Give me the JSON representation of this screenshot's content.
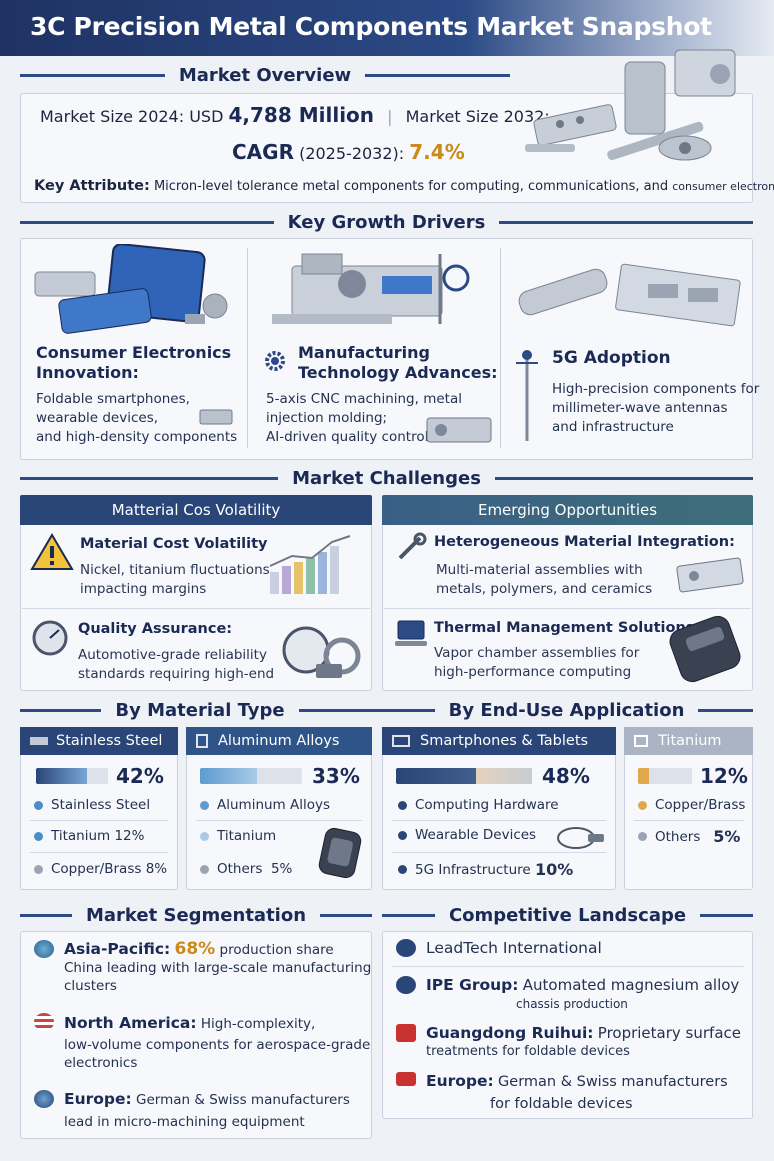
{
  "title": "3C Precision Metal Components Market Snapshot",
  "overview": {
    "heading": "Market Overview",
    "size_2024_label": "Market Size 2024: USD",
    "size_2024_value": "4,788 Million",
    "size_2032_label": "Market Size 2032:",
    "cagr_label": "CAGR",
    "cagr_period": "(2025-2032):",
    "cagr_value": "7.4%",
    "key_attr_label": "Key Attribute:",
    "key_attr_text": "Micron-level tolerance metal components for computing, communications, and",
    "key_attr_tail": "consumer electronics"
  },
  "drivers": {
    "heading": "Key Growth Drivers",
    "items": [
      {
        "title": "Consumer Electronics Innovation:",
        "text": [
          "Foldable smartphones,",
          "wearable devices,",
          "and high-density components"
        ]
      },
      {
        "title": "Manufacturing Technology Advances:",
        "text": [
          "5-axis CNC machining, metal",
          "injection molding;",
          "AI-driven quality control"
        ]
      },
      {
        "title": "5G Adoption",
        "text": [
          "High-precision components for",
          "millimeter-wave antennas",
          "and infrastructure"
        ]
      }
    ]
  },
  "challenges": {
    "heading": "Market Challenges",
    "left_head": "Matterial Cos Volatility",
    "right_head": "Emerging Opportunities",
    "left_items": [
      {
        "title": "Material Cost Volatility",
        "text": [
          "Nickel, titanium fluctuations",
          "impacting margins"
        ]
      },
      {
        "title": "Quality Assurance:",
        "text": [
          "Automotive-grade reliability",
          "standards requiring high-end"
        ]
      }
    ],
    "right_items": [
      {
        "title": "Heterogeneous Material Integration:",
        "text": [
          "Multi-material assemblies with",
          "metals, polymers, and ceramics"
        ]
      },
      {
        "title": "Thermal Management Solutions:",
        "text": [
          "Vapor chamber assemblies for",
          "high-performance computing"
        ]
      }
    ]
  },
  "material_heading": "By Material Type",
  "enduse_heading": "By End-Use Application",
  "material_cards": [
    {
      "head": "Stainless Steel",
      "pct": "42%",
      "fill": 0.42,
      "items": [
        {
          "label": "Stainless Steel",
          "val": ""
        },
        {
          "label": "Titanium",
          "val": "12%"
        },
        {
          "label": "Copper/Brass",
          "val": "8%"
        }
      ]
    },
    {
      "head": "Aluminum Alloys",
      "pct": "33%",
      "fill": 0.33,
      "items": [
        {
          "label": "Aluminum Alloys",
          "val": ""
        },
        {
          "label": "Titanium",
          "val": ""
        },
        {
          "label": "Others",
          "val": "5%"
        }
      ]
    },
    {
      "head": "Smartphones & Tablets",
      "pct": "48%",
      "fill": 0.48,
      "items": [
        {
          "label": "Computing Hardware",
          "val": ""
        },
        {
          "label": "Wearable Devices",
          "val": ""
        },
        {
          "label": "5G Infrastructure",
          "val": "10%"
        }
      ]
    },
    {
      "head": "Titanium",
      "pct": "12%",
      "fill": 0.12,
      "items": [
        {
          "label": "Copper/Brass",
          "val": ""
        },
        {
          "label": "Others",
          "val": "5%"
        }
      ]
    }
  ],
  "segmentation": {
    "heading": "Market Segmentation",
    "items": [
      {
        "region": "Asia-Pacific:",
        "highlight": "68%",
        "after": "production share",
        "lines": [
          "China leading with large-scale manufacturing",
          "clusters"
        ]
      },
      {
        "region": "North America:",
        "highlight": "",
        "after": "High-complexity,",
        "lines": [
          "low-volume components for aerospace-grade",
          "electronics"
        ]
      },
      {
        "region": "Europe:",
        "highlight": "",
        "after": "German & Swiss manufacturers",
        "lines": [
          "lead in micro-machining equipment"
        ]
      }
    ]
  },
  "competitive": {
    "heading": "Competitive Landscape",
    "items": [
      {
        "name": "LeadTech International",
        "text": "",
        "line2": ""
      },
      {
        "name": "IPE Group:",
        "text": "Automated magnesium alloy",
        "line2": "chassis production"
      },
      {
        "name": "Guangdong Ruihui:",
        "text": "Proprietary surface",
        "line2": "treatments for foldable devices"
      },
      {
        "name": "Europe:",
        "text": "German & Swiss manufacturers",
        "line2": "for foldable devices"
      }
    ]
  },
  "colors": {
    "navy": "#1f3263",
    "gold": "#c98a18",
    "accent_blue": "#2b4a86",
    "teal": "#3e6e7a"
  }
}
